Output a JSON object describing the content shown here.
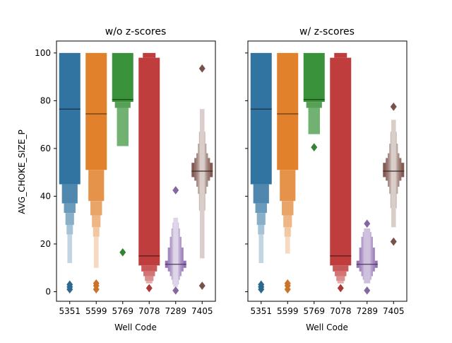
{
  "figure": {
    "ylabel": "AVG_CHOKE_SIZE_P",
    "xlabel": "Well Code"
  },
  "chart_data": [
    {
      "type": "boxen",
      "title": "w/o z-scores",
      "xlabel": "Well Code",
      "ylabel": "AVG_CHOKE_SIZE_P",
      "categories": [
        "5351",
        "5599",
        "5769",
        "7078",
        "7289",
        "7405"
      ],
      "ylim": [
        -4,
        105
      ],
      "yticks": [
        0,
        20,
        40,
        60,
        80,
        100
      ],
      "grid": false,
      "series": [
        {
          "category": "5351",
          "color": "#3274a1",
          "median": 76.5,
          "levels": [
            [
              45,
              100
            ],
            [
              37,
              45
            ],
            [
              33,
              37
            ],
            [
              28,
              33
            ],
            [
              24,
              28
            ],
            [
              12,
              24
            ]
          ],
          "outliers": [
            1,
            2,
            3
          ]
        },
        {
          "category": "5599",
          "color": "#e1812c",
          "median": 74.5,
          "levels": [
            [
              51,
              100
            ],
            [
              38,
              51
            ],
            [
              32,
              38
            ],
            [
              27,
              32
            ],
            [
              23,
              27
            ],
            [
              10,
              23
            ]
          ],
          "outliers": [
            1,
            2.5,
            3.5
          ]
        },
        {
          "category": "5769",
          "color": "#3a923a",
          "median": 80.5,
          "levels": [
            [
              79.5,
              100
            ],
            [
              77,
              79.5
            ],
            [
              61,
              77
            ]
          ],
          "outliers": [
            16.5
          ]
        },
        {
          "category": "7078",
          "color": "#c03d3e",
          "median": 15,
          "levels": [
            [
              11,
              98
            ],
            [
              8.5,
              11
            ],
            [
              6.5,
              8.5
            ],
            [
              4.5,
              6.5
            ],
            [
              3.5,
              4.5
            ],
            [
              98,
              100
            ]
          ],
          "outliers": [
            1.5
          ]
        },
        {
          "category": "7289",
          "color": "#9372b2",
          "median": 11.5,
          "levels": [
            [
              10,
              13
            ],
            [
              8.5,
              18.5
            ],
            [
              6.5,
              23
            ],
            [
              5,
              26.5
            ],
            [
              3,
              29
            ],
            [
              2,
              31
            ]
          ],
          "outliers": [
            0.5,
            42.5
          ]
        },
        {
          "category": "7405",
          "color": "#845b53",
          "median": 50.5,
          "levels": [
            [
              48,
              54
            ],
            [
              46.5,
              56
            ],
            [
              44,
              58
            ],
            [
              41,
              62
            ],
            [
              34,
              67
            ],
            [
              14,
              76.5
            ]
          ],
          "outliers": [
            2.5,
            93.5
          ]
        }
      ]
    },
    {
      "type": "boxen",
      "title": "w/ z-scores",
      "xlabel": "Well Code",
      "ylabel": "",
      "categories": [
        "5351",
        "5599",
        "5769",
        "7078",
        "7289",
        "7405"
      ],
      "ylim": [
        -4,
        105
      ],
      "yticks": [
        0,
        20,
        40,
        60,
        80,
        100
      ],
      "grid": false,
      "series": [
        {
          "category": "5351",
          "color": "#3274a1",
          "median": 76.5,
          "levels": [
            [
              45,
              100
            ],
            [
              37,
              45
            ],
            [
              33,
              37
            ],
            [
              28,
              33
            ],
            [
              24,
              28
            ],
            [
              12,
              24
            ]
          ],
          "outliers": [
            1,
            2,
            3
          ]
        },
        {
          "category": "5599",
          "color": "#e1812c",
          "median": 74.5,
          "levels": [
            [
              51,
              100
            ],
            [
              38,
              51
            ],
            [
              32,
              38
            ],
            [
              27,
              32
            ],
            [
              23,
              27
            ],
            [
              16,
              23
            ]
          ],
          "outliers": [
            1,
            2.5,
            3.5
          ]
        },
        {
          "category": "5769",
          "color": "#3a923a",
          "median": 80.5,
          "levels": [
            [
              79.5,
              100
            ],
            [
              77,
              79.5
            ],
            [
              66,
              77
            ]
          ],
          "outliers": [
            60.5
          ]
        },
        {
          "category": "7078",
          "color": "#c03d3e",
          "median": 15,
          "levels": [
            [
              11,
              98
            ],
            [
              8.5,
              11
            ],
            [
              6.5,
              8.5
            ],
            [
              4.5,
              6.5
            ],
            [
              3.5,
              4.5
            ],
            [
              98,
              100
            ]
          ],
          "outliers": [
            1.5
          ]
        },
        {
          "category": "7289",
          "color": "#9372b2",
          "median": 11.5,
          "levels": [
            [
              10,
              13
            ],
            [
              8.5,
              18.5
            ],
            [
              6.5,
              23
            ],
            [
              5,
              25
            ],
            [
              3.5,
              26.5
            ]
          ],
          "outliers": [
            0.5,
            28.5
          ]
        },
        {
          "category": "7405",
          "color": "#845b53",
          "median": 50.5,
          "levels": [
            [
              48,
              54
            ],
            [
              46.5,
              56
            ],
            [
              44,
              58
            ],
            [
              41,
              62
            ],
            [
              35,
              67
            ],
            [
              27,
              72
            ]
          ],
          "outliers": [
            21,
            77.5
          ]
        }
      ]
    }
  ]
}
